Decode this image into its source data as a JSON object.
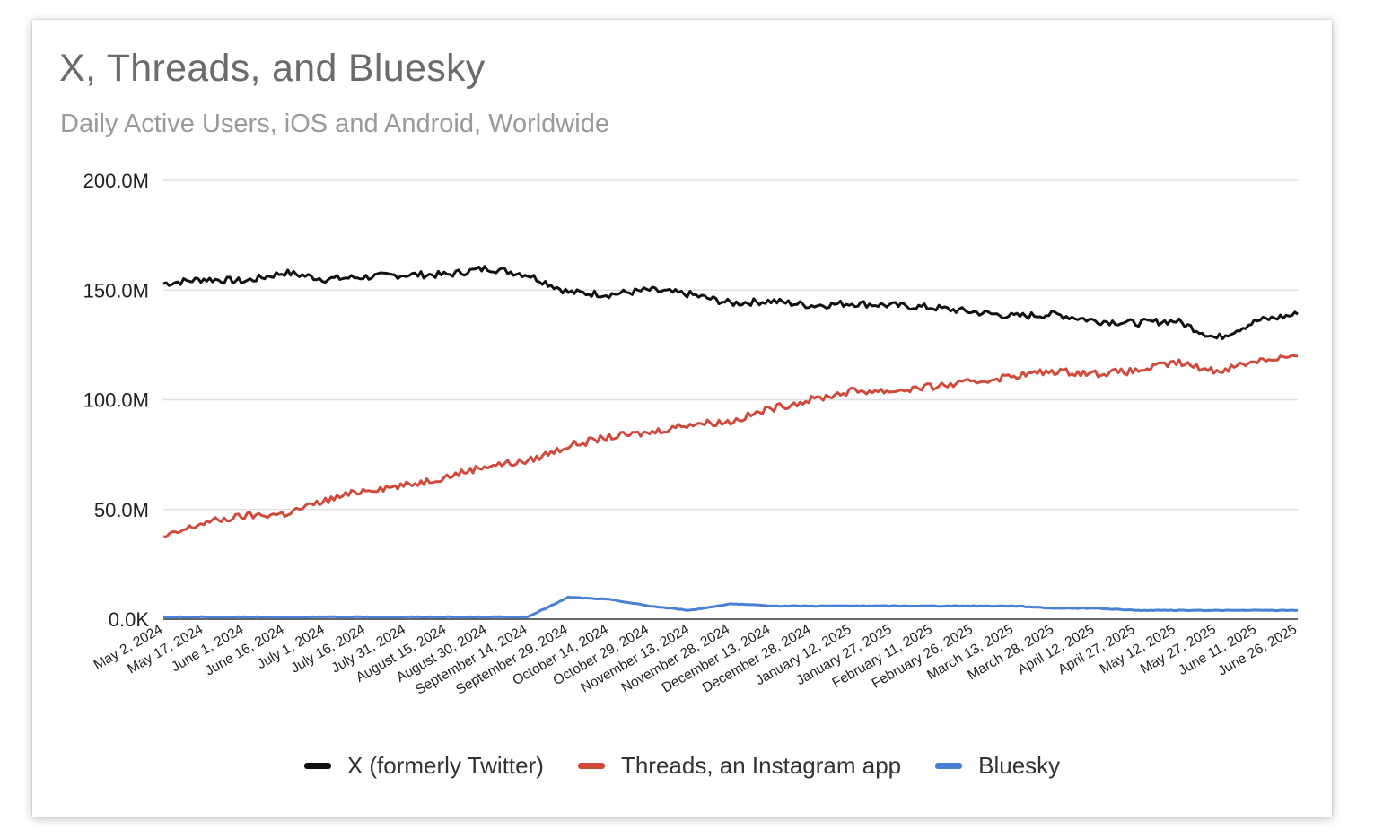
{
  "chart_data": {
    "type": "line",
    "title": "X, Threads, and Bluesky",
    "subtitle": "Daily Active Users, iOS and Android, Worldwide",
    "ylim": [
      0,
      200
    ],
    "y_unit": "M",
    "y_ticks": [
      {
        "value": 0,
        "label": "0.0K"
      },
      {
        "value": 50,
        "label": "50.0M"
      },
      {
        "value": 100,
        "label": "100.0M"
      },
      {
        "value": 150,
        "label": "150.0M"
      },
      {
        "value": 200,
        "label": "200.0M"
      }
    ],
    "grid": true,
    "legend_position": "bottom",
    "x": [
      "May 2, 2024",
      "May 17, 2024",
      "June 1, 2024",
      "June 16, 2024",
      "July 1, 2024",
      "July 16, 2024",
      "July 31, 2024",
      "August 15, 2024",
      "August 30, 2024",
      "September 14, 2024",
      "September 29, 2024",
      "October 14, 2024",
      "October 29, 2024",
      "November 13, 2024",
      "November 28, 2024",
      "December 13, 2024",
      "December 28, 2024",
      "January 12, 2025",
      "January 27, 2025",
      "February 11, 2025",
      "February 26, 2025",
      "March 13, 2025",
      "March 28, 2025",
      "April 12, 2025",
      "April 27, 2025",
      "May 12, 2025",
      "May 27, 2025",
      "June 11, 2025",
      "June 26, 2025"
    ],
    "series": [
      {
        "name": "X (formerly Twitter)",
        "color": "#111111",
        "values": [
          153,
          155,
          154,
          158,
          155,
          156,
          157,
          157,
          160,
          157,
          149,
          148,
          150,
          148,
          144,
          145,
          143,
          144,
          143,
          142,
          140,
          138,
          139,
          136,
          135,
          136,
          128,
          136,
          139
        ]
      },
      {
        "name": "Threads, an Instagram app",
        "color": "#d04a3c",
        "values": [
          37,
          44,
          47,
          48,
          54,
          59,
          61,
          65,
          70,
          72,
          79,
          83,
          85,
          89,
          90,
          96,
          100,
          104,
          104,
          106,
          108,
          111,
          113,
          112,
          113,
          117,
          113,
          118,
          120
        ]
      },
      {
        "name": "Bluesky",
        "color": "#4a7fd6",
        "values": [
          1,
          1,
          1,
          1,
          1,
          1,
          1,
          1,
          1,
          1,
          10,
          9,
          6,
          4,
          7,
          6,
          6,
          6,
          6,
          6,
          6,
          6,
          5,
          5,
          4,
          4,
          4,
          4,
          4
        ]
      }
    ],
    "colors": {
      "gridline": "#e0e0e0",
      "baseline": "#333333"
    }
  }
}
